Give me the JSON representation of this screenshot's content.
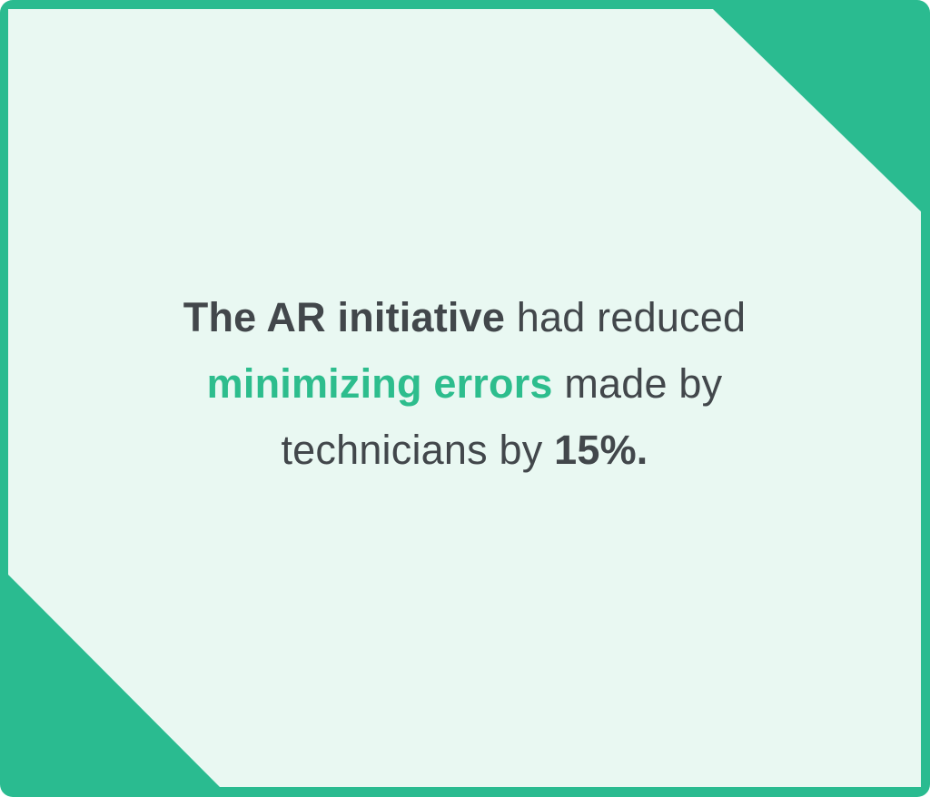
{
  "colors": {
    "frame_green": "#2abb90",
    "panel_mint": "#e9f8f2",
    "text_dark": "#42474b",
    "accent_green": "#2dbd8d"
  },
  "quote": {
    "line1": {
      "bold": "The AR initiative",
      "rest": " had reduced"
    },
    "line2": {
      "accent": "minimizing errors",
      "rest": " made by"
    },
    "line3": {
      "lead": "technicians by ",
      "stat": "15%."
    }
  }
}
